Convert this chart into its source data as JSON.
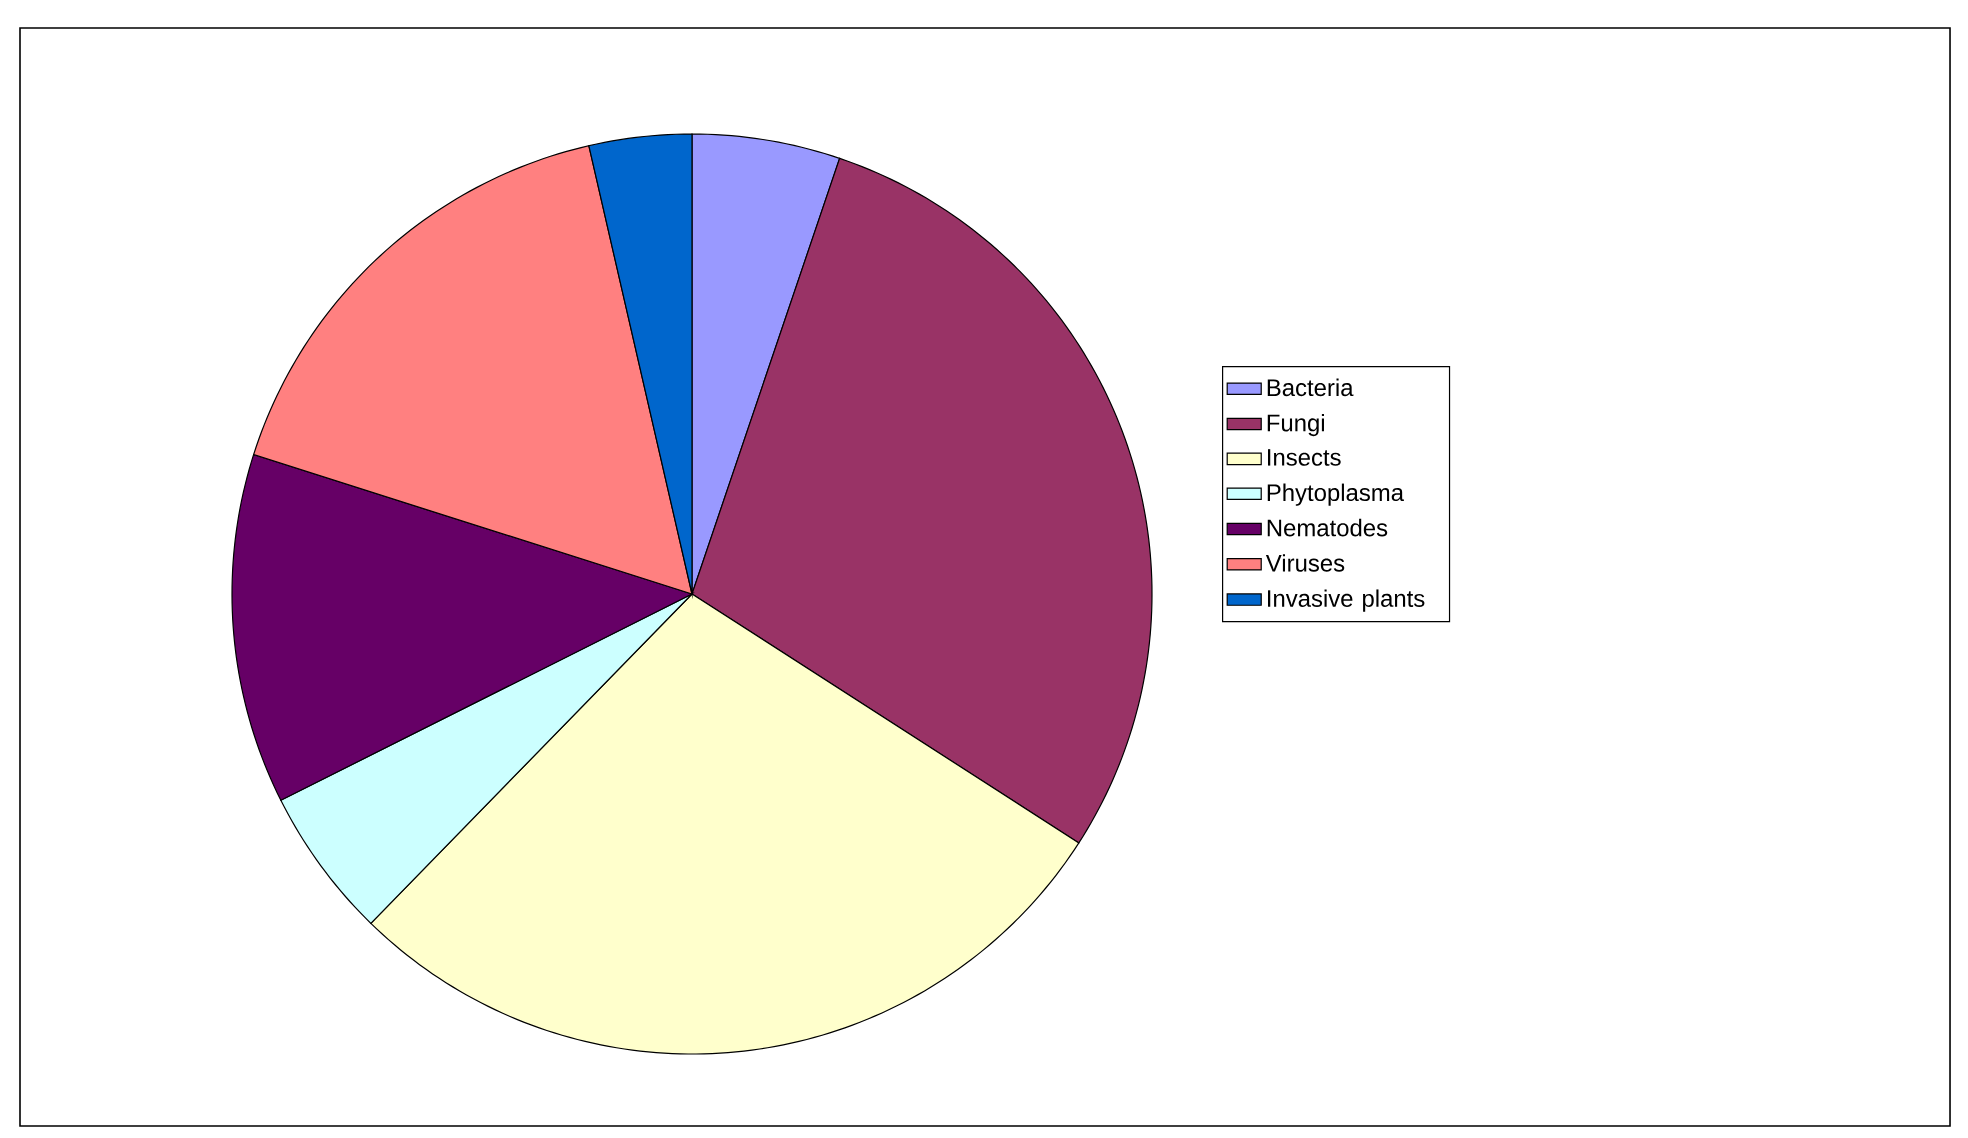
{
  "chart_data": {
    "type": "pie",
    "categories": [
      "Bacteria",
      "Fungi",
      "Insects",
      "Phytoplasma",
      "Nematodes",
      "Viruses",
      "Invasive plants"
    ],
    "values": [
      5.2,
      28.9,
      28.2,
      5.3,
      12.3,
      16.5,
      3.6
    ],
    "colors": [
      "#9999ff",
      "#993366",
      "#ffffcc",
      "#ccffff",
      "#660066",
      "#ff8080",
      "#0066cc"
    ],
    "legend": "right"
  }
}
